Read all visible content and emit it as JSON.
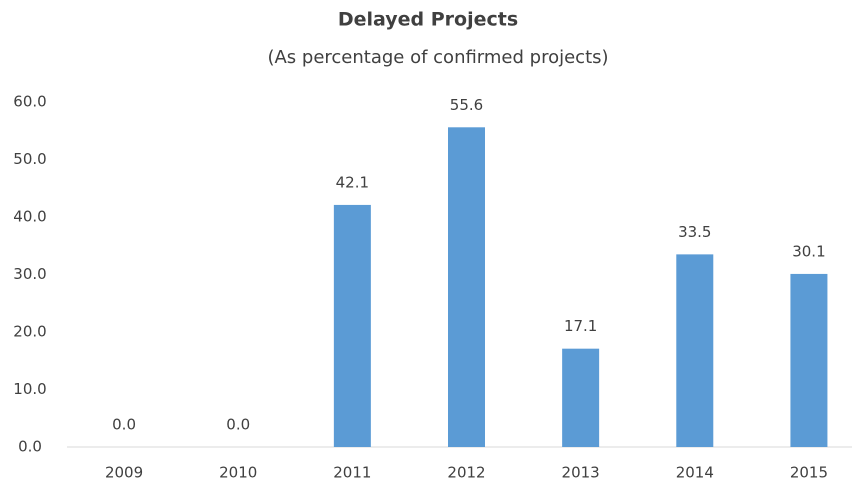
{
  "chart_data": {
    "type": "bar",
    "title": "Delayed Projects",
    "subtitle": "(As percentage of confirmed projects)",
    "categories": [
      "2009",
      "2010",
      "2011",
      "2012",
      "2013",
      "2014",
      "2015"
    ],
    "values": [
      0,
      0,
      42.1,
      55.6,
      17.1,
      33.5,
      30.1
    ],
    "value_labels": [
      "0.0",
      "0.0",
      "42.1",
      "55.6",
      "17.1",
      "33.5",
      "30.1"
    ],
    "color": "#5b9bd5",
    "ylim": [
      0,
      60
    ],
    "yticks": [
      {
        "value": 0,
        "label": "0.0"
      },
      {
        "value": 10,
        "label": "10.0"
      },
      {
        "value": 20,
        "label": "20.0"
      },
      {
        "value": 30,
        "label": "30.0"
      },
      {
        "value": 40,
        "label": "40.0"
      },
      {
        "value": 50,
        "label": "50.0"
      },
      {
        "value": 60,
        "label": "60.0"
      }
    ],
    "grid": false
  }
}
